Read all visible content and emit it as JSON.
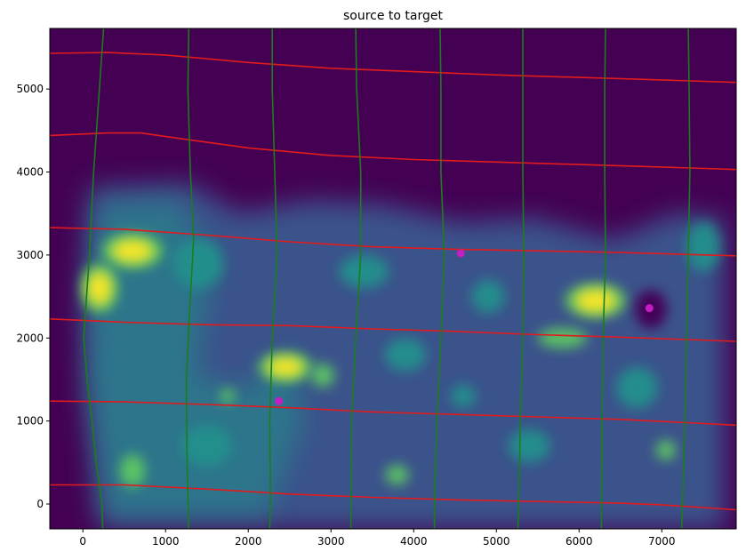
{
  "chart_data": {
    "type": "heatmap",
    "title": "source to target",
    "xlabel": "",
    "ylabel": "",
    "xlim": [
      -400,
      7900
    ],
    "ylim": [
      -300,
      5730
    ],
    "x_ticks": [
      0,
      1000,
      2000,
      3000,
      4000,
      5000,
      6000,
      7000
    ],
    "y_ticks": [
      0,
      1000,
      2000,
      3000,
      4000,
      5000
    ],
    "grid": false,
    "legend": "none",
    "colors": {
      "background": "#440154",
      "field_low": "#3b528b",
      "field_mid": "#21918c",
      "field_high": "#5ec962",
      "field_peak": "#fde725",
      "horizontal_lines": "#e31a1c",
      "vertical_lines": "#1a7f1a",
      "points": "#c21fc2"
    },
    "horizontal_lines": [
      [
        [
          -400,
          5430
        ],
        [
          300,
          5440
        ],
        [
          1000,
          5410
        ],
        [
          2000,
          5320
        ],
        [
          3000,
          5250
        ],
        [
          4000,
          5210
        ],
        [
          5000,
          5170
        ],
        [
          6000,
          5140
        ],
        [
          7000,
          5110
        ],
        [
          7900,
          5080
        ]
      ],
      [
        [
          -400,
          4440
        ],
        [
          300,
          4470
        ],
        [
          700,
          4470
        ],
        [
          1200,
          4400
        ],
        [
          2000,
          4290
        ],
        [
          3000,
          4200
        ],
        [
          4000,
          4150
        ],
        [
          5000,
          4120
        ],
        [
          6000,
          4090
        ],
        [
          7000,
          4060
        ],
        [
          7900,
          4030
        ]
      ],
      [
        [
          -400,
          3330
        ],
        [
          500,
          3310
        ],
        [
          1500,
          3240
        ],
        [
          2500,
          3160
        ],
        [
          3500,
          3100
        ],
        [
          4500,
          3070
        ],
        [
          5500,
          3050
        ],
        [
          6500,
          3030
        ],
        [
          7900,
          2990
        ]
      ],
      [
        [
          -400,
          2230
        ],
        [
          500,
          2190
        ],
        [
          1500,
          2160
        ],
        [
          2500,
          2150
        ],
        [
          3500,
          2110
        ],
        [
          4500,
          2080
        ],
        [
          5500,
          2040
        ],
        [
          6500,
          2010
        ],
        [
          7900,
          1960
        ]
      ],
      [
        [
          -400,
          1240
        ],
        [
          500,
          1230
        ],
        [
          1500,
          1200
        ],
        [
          2500,
          1160
        ],
        [
          3500,
          1110
        ],
        [
          4500,
          1080
        ],
        [
          5500,
          1050
        ],
        [
          6500,
          1020
        ],
        [
          7900,
          950
        ]
      ],
      [
        [
          -400,
          230
        ],
        [
          500,
          230
        ],
        [
          1500,
          180
        ],
        [
          2500,
          120
        ],
        [
          3500,
          80
        ],
        [
          4500,
          50
        ],
        [
          5500,
          30
        ],
        [
          6500,
          10
        ],
        [
          7000,
          -10
        ],
        [
          7900,
          -70
        ]
      ]
    ],
    "vertical_lines": [
      [
        [
          250,
          5730
        ],
        [
          200,
          5000
        ],
        [
          130,
          4000
        ],
        [
          80,
          3000
        ],
        [
          10,
          2000
        ],
        [
          50,
          1500
        ],
        [
          110,
          1000
        ],
        [
          160,
          500
        ],
        [
          230,
          0
        ],
        [
          240,
          -300
        ]
      ],
      [
        [
          1280,
          5730
        ],
        [
          1270,
          5000
        ],
        [
          1300,
          4000
        ],
        [
          1340,
          3200
        ],
        [
          1290,
          2300
        ],
        [
          1250,
          1500
        ],
        [
          1260,
          500
        ],
        [
          1280,
          -300
        ]
      ],
      [
        [
          2290,
          5730
        ],
        [
          2290,
          5000
        ],
        [
          2320,
          4000
        ],
        [
          2350,
          3000
        ],
        [
          2290,
          2000
        ],
        [
          2260,
          1000
        ],
        [
          2270,
          0
        ],
        [
          2260,
          -300
        ]
      ],
      [
        [
          3300,
          5730
        ],
        [
          3310,
          5000
        ],
        [
          3360,
          4000
        ],
        [
          3360,
          3000
        ],
        [
          3300,
          2000
        ],
        [
          3250,
          1000
        ],
        [
          3240,
          0
        ],
        [
          3240,
          -300
        ]
      ],
      [
        [
          4320,
          5730
        ],
        [
          4330,
          5000
        ],
        [
          4330,
          4000
        ],
        [
          4370,
          3000
        ],
        [
          4330,
          2000
        ],
        [
          4280,
          1000
        ],
        [
          4250,
          0
        ],
        [
          4250,
          -300
        ]
      ],
      [
        [
          5320,
          5730
        ],
        [
          5320,
          5000
        ],
        [
          5320,
          4000
        ],
        [
          5330,
          3000
        ],
        [
          5320,
          2000
        ],
        [
          5290,
          1000
        ],
        [
          5270,
          0
        ],
        [
          5260,
          -300
        ]
      ],
      [
        [
          6320,
          5730
        ],
        [
          6310,
          5000
        ],
        [
          6310,
          4000
        ],
        [
          6320,
          3000
        ],
        [
          6290,
          2000
        ],
        [
          6280,
          1000
        ],
        [
          6270,
          0
        ],
        [
          6270,
          -300
        ]
      ],
      [
        [
          7320,
          5730
        ],
        [
          7330,
          5000
        ],
        [
          7340,
          4000
        ],
        [
          7320,
          3000
        ],
        [
          7300,
          2000
        ],
        [
          7280,
          1000
        ],
        [
          7250,
          0
        ],
        [
          7240,
          -300
        ]
      ]
    ],
    "points": [
      {
        "x": 4570,
        "y": 3020
      },
      {
        "x": 6850,
        "y": 2360
      },
      {
        "x": 2370,
        "y": 1240
      }
    ],
    "heat_blobs": [
      {
        "x": 600,
        "y": 3050,
        "rx": 250,
        "ry": 140,
        "level": "peak"
      },
      {
        "x": 200,
        "y": 2600,
        "rx": 150,
        "ry": 200,
        "level": "peak"
      },
      {
        "x": 6200,
        "y": 2450,
        "rx": 250,
        "ry": 140,
        "level": "peak"
      },
      {
        "x": 2450,
        "y": 1650,
        "rx": 220,
        "ry": 120,
        "level": "peak"
      },
      {
        "x": 1750,
        "y": 1300,
        "rx": 90,
        "ry": 90,
        "level": "high"
      },
      {
        "x": 2900,
        "y": 1550,
        "rx": 140,
        "ry": 140,
        "level": "high"
      },
      {
        "x": 5800,
        "y": 2000,
        "rx": 300,
        "ry": 120,
        "level": "high"
      },
      {
        "x": 7050,
        "y": 650,
        "rx": 120,
        "ry": 120,
        "level": "high"
      },
      {
        "x": 600,
        "y": 400,
        "rx": 150,
        "ry": 200,
        "level": "high"
      },
      {
        "x": 3800,
        "y": 350,
        "rx": 140,
        "ry": 120,
        "level": "high"
      },
      {
        "x": 4600,
        "y": 1300,
        "rx": 150,
        "ry": 140,
        "level": "mid"
      },
      {
        "x": 7500,
        "y": 3100,
        "rx": 200,
        "ry": 300,
        "level": "mid"
      },
      {
        "x": 4900,
        "y": 2500,
        "rx": 200,
        "ry": 200,
        "level": "mid"
      },
      {
        "x": 3900,
        "y": 1800,
        "rx": 250,
        "ry": 200,
        "level": "mid"
      },
      {
        "x": 1400,
        "y": 2900,
        "rx": 300,
        "ry": 300,
        "level": "mid"
      },
      {
        "x": 3400,
        "y": 2800,
        "rx": 300,
        "ry": 200,
        "level": "mid"
      },
      {
        "x": 5400,
        "y": 700,
        "rx": 250,
        "ry": 200,
        "level": "mid"
      },
      {
        "x": 1500,
        "y": 700,
        "rx": 300,
        "ry": 250,
        "level": "mid"
      },
      {
        "x": 6700,
        "y": 1400,
        "rx": 250,
        "ry": 250,
        "level": "mid"
      }
    ]
  }
}
